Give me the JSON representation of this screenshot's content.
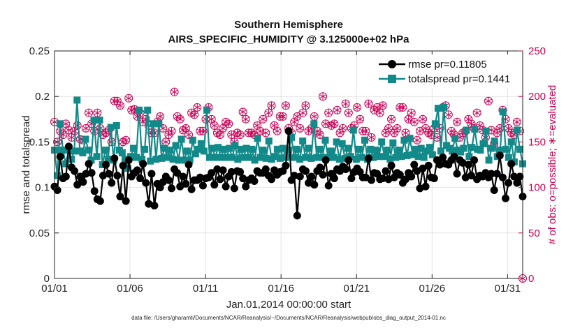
{
  "chart_data": {
    "type": "line",
    "title": "Southern Hemisphere",
    "subtitle": "AIRS_SPECIFIC_HUMIDITY @ 3.125000e+02 hPa",
    "xlabel": "Jan.01,2014 00:00:00 start",
    "ylabel": "rmse and totalspread",
    "y2label": "# of obs: o=possible; ∗=evaluated",
    "footnote": "data file: /Users/gharamti/Documents/NCAR/Reanalysis/~/Documents/NCAR/Reanalysis/webpub/obs_diag_output_2014-01.nc",
    "xlim": [
      1,
      32
    ],
    "ylim": [
      0,
      0.25
    ],
    "y2lim": [
      0,
      250
    ],
    "x_ticks": [
      1,
      6,
      11,
      16,
      21,
      26,
      31
    ],
    "x_tick_labels": [
      "01/01",
      "01/06",
      "01/11",
      "01/16",
      "01/21",
      "01/26",
      "01/31"
    ],
    "y_ticks": [
      0,
      0.05,
      0.1,
      0.15,
      0.2,
      0.25
    ],
    "y_tick_labels": [
      "0",
      "0.05",
      "0.1",
      "0.15",
      "0.2",
      "0.25"
    ],
    "y2_ticks": [
      0,
      50,
      100,
      150,
      200,
      250
    ],
    "y2_tick_labels": [
      "0",
      "50",
      "100",
      "150",
      "200",
      "250"
    ],
    "colors": {
      "rmse": "#000000",
      "spread": "#138a8a",
      "obs": "#cc0055",
      "axis": "#222222"
    },
    "legend_position": "top-right",
    "grid": true,
    "series": [
      {
        "name": "rmse pr=0.11805",
        "values": [
          0.101,
          0.097,
          0.134,
          0.11,
          0.112,
          0.145,
          0.122,
          0.118,
          0.103,
          0.112,
          0.106,
          0.115,
          0.126,
          0.116,
          0.096,
          0.087,
          0.085,
          0.113,
          0.125,
          0.115,
          0.105,
          0.132,
          0.113,
          0.09,
          0.124,
          0.085,
          0.13,
          0.112,
          0.116,
          0.119,
          0.11,
          0.126,
          0.105,
          0.082,
          0.115,
          0.08,
          0.104,
          0.1,
          0.106,
          0.112,
          0.108,
          0.099,
          0.12,
          0.116,
          0.101,
          0.112,
          0.104,
          0.125,
          0.098,
          0.108,
          0.108,
          0.111,
          0.102,
          0.11,
          0.111,
          0.116,
          0.103,
          0.12,
          0.109,
          0.119,
          0.101,
          0.112,
          0.117,
          0.099,
          0.118,
          0.117,
          0.11,
          0.101,
          0.108,
          0.11,
          0.107,
          0.118,
          0.116,
          0.116,
          0.12,
          0.113,
          0.109,
          0.119,
          0.114,
          0.117,
          0.118,
          0.124,
          0.162,
          0.108,
          0.113,
          0.069,
          0.112,
          0.12,
          0.118,
          0.105,
          0.112,
          0.103,
          0.118,
          0.122,
          0.114,
          0.13,
          0.102,
          0.115,
          0.11,
          0.12,
          0.118,
          0.123,
          0.12,
          0.13,
          0.11,
          0.117,
          0.121,
          0.117,
          0.111,
          0.111,
          0.132,
          0.108,
          0.116,
          0.115,
          0.109,
          0.11,
          0.118,
          0.109,
          0.124,
          0.111,
          0.116,
          0.114,
          0.105,
          0.109,
          0.116,
          0.112,
          0.125,
          0.118,
          0.099,
          0.121,
          0.101,
          0.124,
          0.111,
          0.11,
          0.13,
          0.125,
          0.133,
          0.126,
          0.125,
          0.13,
          0.134,
          0.115,
          0.13,
          0.127,
          0.111,
          0.125,
          0.113,
          0.13,
          0.109,
          0.113,
          0.112,
          0.116,
          0.111,
          0.115,
          0.097,
          0.115,
          0.135,
          0.111,
          0.088,
          0.105,
          0.126,
          0.112,
          0.105,
          0.112,
          0.09
        ],
        "color": "#000000",
        "marker": "circle"
      },
      {
        "name": "totalspread pr=0.1441",
        "values": [
          0.141,
          0.113,
          0.17,
          0.141,
          0.126,
          0.141,
          0.131,
          0.14,
          0.196,
          0.14,
          0.138,
          0.153,
          0.141,
          0.13,
          0.174,
          0.134,
          0.174,
          0.125,
          0.141,
          0.131,
          0.166,
          0.13,
          0.168,
          0.141,
          0.138,
          0.131,
          0.121,
          0.134,
          0.143,
          0.133,
          0.185,
          0.131,
          0.142,
          0.185,
          0.129,
          0.17,
          0.131,
          0.17,
          0.132,
          0.143,
          0.133,
          0.141,
          0.131,
          0.146,
          0.13,
          0.153,
          0.13,
          0.14,
          0.13,
          0.152,
          0.137,
          0.142,
          0.148,
          0.14,
          0.185,
          0.133,
          0.143,
          0.133,
          0.144,
          0.133,
          0.142,
          0.133,
          0.143,
          0.133,
          0.146,
          0.131,
          0.142,
          0.133,
          0.143,
          0.133,
          0.142,
          0.13,
          0.154,
          0.133,
          0.141,
          0.132,
          0.151,
          0.131,
          0.134,
          0.142,
          0.132,
          0.143,
          0.133,
          0.141,
          0.155,
          0.133,
          0.142,
          0.131,
          0.151,
          0.133,
          0.143,
          0.132,
          0.17,
          0.133,
          0.142,
          0.133,
          0.152,
          0.133,
          0.14,
          0.133,
          0.15,
          0.131,
          0.148,
          0.132,
          0.143,
          0.134,
          0.163,
          0.131,
          0.142,
          0.133,
          0.152,
          0.131,
          0.142,
          0.133,
          0.141,
          0.134,
          0.15,
          0.134,
          0.141,
          0.131,
          0.149,
          0.133,
          0.141,
          0.134,
          0.152,
          0.135,
          0.154,
          0.136,
          0.142,
          0.134,
          0.143,
          0.133,
          0.14,
          0.144,
          0.136,
          0.17,
          0.187,
          0.14,
          0.188,
          0.146,
          0.143,
          0.14,
          0.154,
          0.141,
          0.139,
          0.143,
          0.163,
          0.134,
          0.144,
          0.164,
          0.142,
          0.141,
          0.148,
          0.162,
          0.13,
          0.143,
          0.151,
          0.134,
          0.141,
          0.183,
          0.142,
          0.133,
          0.15,
          0.128,
          0.163,
          0.142,
          0.126
        ],
        "color": "#138a8a",
        "marker": "square"
      },
      {
        "name": "obs possible",
        "values": [
          172,
          150,
          162,
          158,
          170,
          163,
          155,
          162,
          168,
          153,
          152,
          165,
          182,
          170,
          162,
          182,
          165,
          158,
          160,
          163,
          150,
          195,
          195,
          190,
          150,
          152,
          198,
          185,
          186,
          178,
          182,
          172,
          175,
          168,
          160,
          160,
          172,
          178,
          165,
          150,
          158,
          162,
          205,
          178,
          175,
          163,
          165,
          158,
          182,
          180,
          188,
          162,
          162,
          175,
          188,
          175,
          168,
          160,
          158,
          165,
          172,
          170,
          158,
          150,
          160,
          158,
          183,
          175,
          160,
          160,
          158,
          168,
          162,
          175,
          160,
          182,
          190,
          168,
          162,
          178,
          178,
          190,
          165,
          160,
          172,
          178,
          165,
          182,
          190,
          162,
          165,
          178,
          162,
          158,
          200,
          170,
          182,
          168,
          170,
          185,
          160,
          165,
          192,
          182,
          165,
          168,
          188,
          175,
          162,
          162,
          192,
          155,
          185,
          188,
          182,
          190,
          160,
          165,
          175,
          160,
          165,
          188,
          188,
          160,
          175,
          182,
          172,
          152,
          162,
          175,
          165,
          160,
          158,
          165,
          155,
          165,
          188,
          190,
          180,
          162,
          158,
          172,
          155,
          160,
          162,
          175,
          170,
          165,
          182,
          168,
          163,
          155,
          195,
          163,
          148,
          160,
          165,
          185,
          175,
          165,
          160,
          158,
          172,
          162,
          0
        ],
        "color": "#cc0055",
        "marker": "circle-open"
      }
    ]
  }
}
